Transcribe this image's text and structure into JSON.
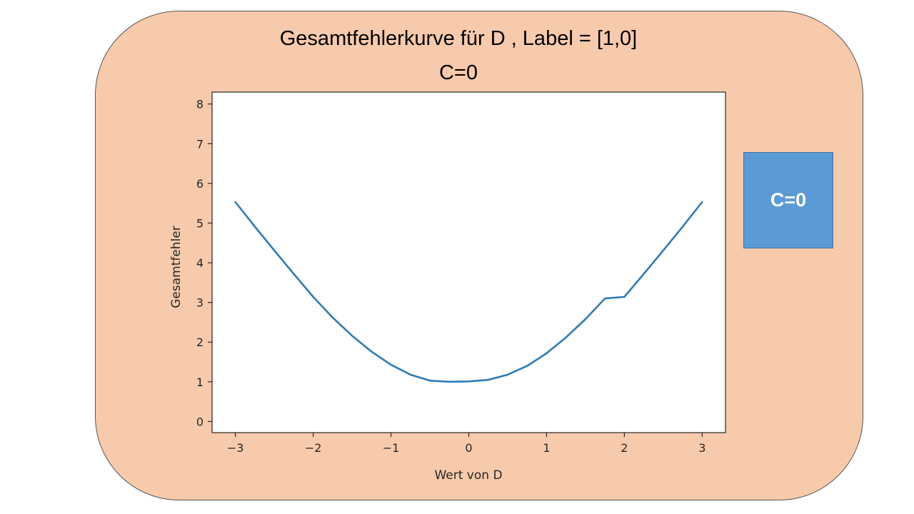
{
  "colors": {
    "panel_fill": "#f7caac",
    "box_fill": "#5b9bd5",
    "line_color": "#2f7bb6",
    "plot_bg": "#ffffff"
  },
  "title": {
    "line1": "Gesamtfehlerkurve  für D , Label = [1,0]",
    "line2": "C=0"
  },
  "side_box": {
    "label": "C=0"
  },
  "chart_data": {
    "type": "line",
    "title": "Gesamtfehlerkurve  für D , Label = [1,0] C=0",
    "xlabel": "Wert von D",
    "ylabel": "Gesamtfehler",
    "xlim": [
      -3.3,
      3.3
    ],
    "ylim": [
      -0.28,
      8.3
    ],
    "x_ticks": [
      -3,
      -2,
      -1,
      0,
      1,
      2,
      3
    ],
    "x_tick_labels": [
      "−3",
      "−2",
      "−1",
      "0",
      "1",
      "2",
      "3"
    ],
    "y_ticks": [
      0,
      1,
      2,
      3,
      4,
      5,
      6,
      7,
      8
    ],
    "y_tick_labels": [
      "0",
      "1",
      "2",
      "3",
      "4",
      "5",
      "6",
      "7",
      "8"
    ],
    "grid": false,
    "series": [
      {
        "x": [
          -3,
          -2.75,
          -2.5,
          -2.25,
          -2,
          -1.75,
          -1.5,
          -1.25,
          -1,
          -0.75,
          -0.5,
          -0.25,
          0,
          0.25,
          0.5,
          0.75,
          1,
          1.25,
          1.5,
          1.75,
          2,
          2.25,
          2.5,
          2.75,
          3
        ],
        "values": [
          5.53,
          4.91,
          4.31,
          3.72,
          3.14,
          2.62,
          2.16,
          1.76,
          1.43,
          1.18,
          1.03,
          1.0,
          1.01,
          1.05,
          1.18,
          1.4,
          1.72,
          2.12,
          2.58,
          3.1,
          3.14,
          3.72,
          4.31,
          4.91,
          5.53
        ]
      }
    ]
  }
}
